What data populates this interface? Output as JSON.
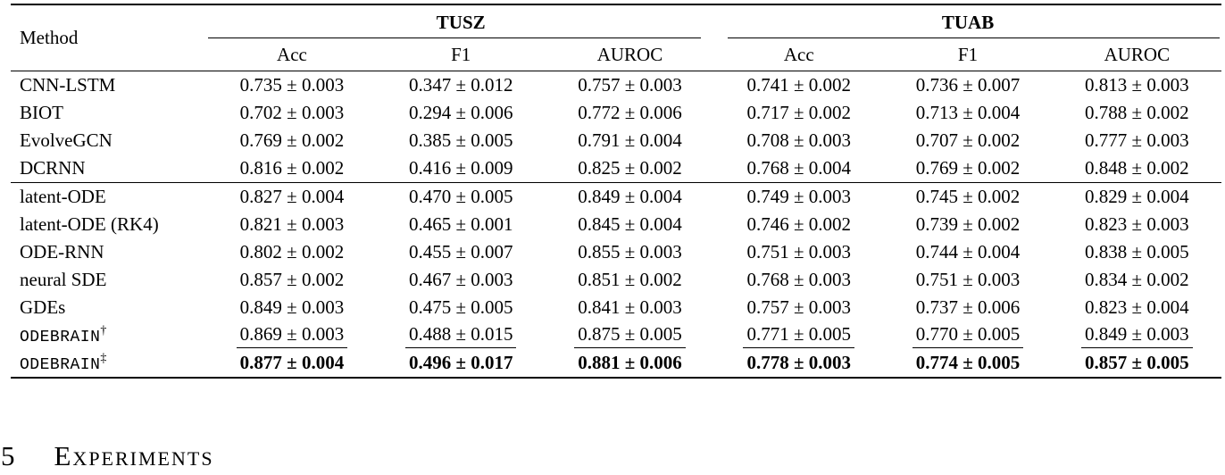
{
  "table": {
    "method_header": "Method",
    "groups": {
      "g1": "TUSZ",
      "g2": "TUAB"
    },
    "subheaders": [
      "Acc",
      "F1",
      "AUROC",
      "Acc",
      "F1",
      "AUROC"
    ],
    "rows": [
      {
        "method": "CNN-LSTM",
        "values": [
          "0.735 ± 0.003",
          "0.347 ± 0.012",
          "0.757 ± 0.003",
          "0.741 ± 0.002",
          "0.736 ± 0.007",
          "0.813 ± 0.003"
        ]
      },
      {
        "method": "BIOT",
        "values": [
          "0.702 ± 0.003",
          "0.294 ± 0.006",
          "0.772 ± 0.006",
          "0.717 ± 0.002",
          "0.713 ± 0.004",
          "0.788 ± 0.002"
        ]
      },
      {
        "method": "EvolveGCN",
        "values": [
          "0.769 ± 0.002",
          "0.385 ± 0.005",
          "0.791 ± 0.004",
          "0.708 ± 0.003",
          "0.707 ± 0.002",
          "0.777 ± 0.003"
        ]
      },
      {
        "method": "DCRNN",
        "values": [
          "0.816 ± 0.002",
          "0.416 ± 0.009",
          "0.825 ± 0.002",
          "0.768 ± 0.004",
          "0.769 ± 0.002",
          "0.848 ± 0.002"
        ]
      },
      {
        "method": "latent-ODE",
        "values": [
          "0.827 ± 0.004",
          "0.470 ± 0.005",
          "0.849 ± 0.004",
          "0.749 ± 0.003",
          "0.745 ± 0.002",
          "0.829 ± 0.004"
        ]
      },
      {
        "method": "latent-ODE (RK4)",
        "values": [
          "0.821 ± 0.003",
          "0.465 ± 0.001",
          "0.845 ± 0.004",
          "0.746 ± 0.002",
          "0.739 ± 0.002",
          "0.823 ± 0.003"
        ]
      },
      {
        "method": "ODE-RNN",
        "values": [
          "0.802 ± 0.002",
          "0.455 ± 0.007",
          "0.855 ± 0.003",
          "0.751 ± 0.003",
          "0.744 ± 0.004",
          "0.838 ± 0.005"
        ]
      },
      {
        "method": "neural SDE",
        "values": [
          "0.857 ± 0.002",
          "0.467 ± 0.003",
          "0.851 ± 0.002",
          "0.768 ± 0.003",
          "0.751 ± 0.003",
          "0.834 ± 0.002"
        ]
      },
      {
        "method": "GDEs",
        "values": [
          "0.849 ± 0.003",
          "0.475 ± 0.005",
          "0.841 ± 0.003",
          "0.757 ± 0.003",
          "0.737 ± 0.006",
          "0.823 ± 0.004"
        ]
      },
      {
        "method": "ODEBRAIN",
        "sup": "†",
        "values": [
          "0.869 ± 0.003",
          "0.488 ± 0.015",
          "0.875 ± 0.005",
          "0.771 ± 0.005",
          "0.770 ± 0.005",
          "0.849 ± 0.003"
        ]
      },
      {
        "method": "ODEBRAIN",
        "sup": "‡",
        "values": [
          "0.877 ± 0.004",
          "0.496 ± 0.017",
          "0.881 ± 0.006",
          "0.778 ± 0.003",
          "0.774 ± 0.005",
          "0.857 ± 0.005"
        ]
      }
    ]
  },
  "section": {
    "number": "5",
    "title": "Experiments"
  },
  "colors": {
    "text": "#000000",
    "background": "#ffffff",
    "rule": "#000000"
  }
}
